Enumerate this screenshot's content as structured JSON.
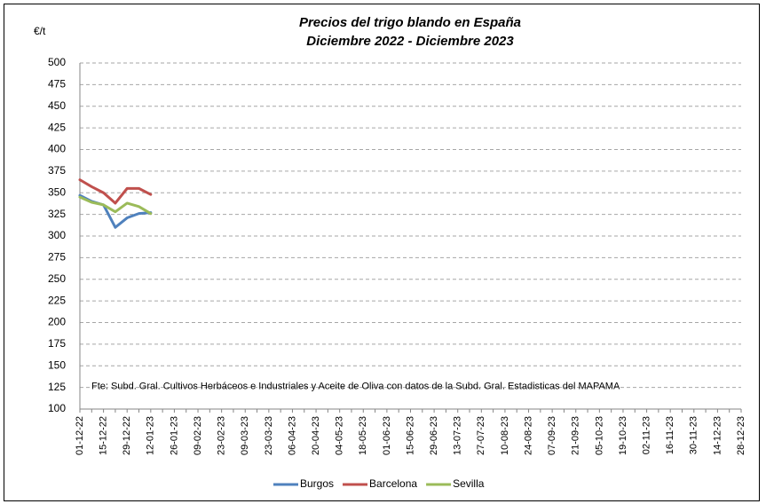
{
  "chart_data": {
    "type": "line",
    "title": "Precios del trigo blando en España",
    "subtitle": "Diciembre 2022 - Diciembre 2023",
    "y_label": "€/t",
    "annotation": "Fte: Subd. Gral. Cultivos Herbáceos e Industriales y Aceite de Oliva  con datos de la Subd. Gral. Estadisticas del MAPAMA",
    "categories": [
      "01-12-22",
      null,
      "15-12-22",
      null,
      "29-12-22",
      null,
      "12-01-23",
      null,
      "26-01-23",
      null,
      "09-02-23",
      null,
      "23-02-23",
      null,
      "09-03-23",
      null,
      "23-03-23",
      null,
      "06-04-23",
      null,
      "20-04-23",
      null,
      "04-05-23",
      null,
      "18-05-23",
      null,
      "01-06-23",
      null,
      "15-06-23",
      null,
      "29-06-23",
      null,
      "13-07-23",
      null,
      "27-07-23",
      null,
      "10-08-23",
      null,
      "24-08-23",
      null,
      "07-09-23",
      null,
      "21-09-23",
      null,
      "05-10-23",
      null,
      "19-10-23",
      null,
      "02-11-23",
      null,
      "16-11-23",
      null,
      "30-11-23",
      null,
      "14-12-23",
      null,
      "28-12-23"
    ],
    "series": [
      {
        "name": "Burgos",
        "color": "#4f81bd",
        "values": [
          347,
          340,
          336,
          310,
          321,
          326,
          327,
          null,
          null,
          null,
          null,
          null,
          null,
          null,
          null,
          null,
          null,
          null,
          null,
          null,
          null,
          null,
          null,
          null,
          null,
          null,
          null,
          null,
          null,
          null,
          null,
          null,
          null,
          null,
          null,
          null,
          null,
          null,
          null,
          null,
          null,
          null,
          null,
          null,
          null,
          null,
          null,
          null,
          null,
          null,
          null,
          null,
          null,
          null,
          null,
          null,
          null
        ]
      },
      {
        "name": "Barcelona",
        "color": "#c0504d",
        "values": [
          365,
          357,
          350,
          338,
          355,
          355,
          348,
          null,
          null,
          null,
          null,
          null,
          null,
          null,
          null,
          null,
          null,
          null,
          null,
          null,
          null,
          null,
          null,
          null,
          null,
          null,
          null,
          null,
          null,
          null,
          null,
          null,
          null,
          null,
          null,
          null,
          null,
          null,
          null,
          null,
          null,
          null,
          null,
          null,
          null,
          null,
          null,
          null,
          null,
          null,
          null,
          null,
          null,
          null,
          null,
          null,
          null
        ]
      },
      {
        "name": "Sevilla",
        "color": "#9bbb59",
        "values": [
          345,
          339,
          336,
          328,
          338,
          334,
          326,
          null,
          null,
          null,
          null,
          null,
          null,
          null,
          null,
          null,
          null,
          null,
          null,
          null,
          null,
          null,
          null,
          null,
          null,
          null,
          null,
          null,
          null,
          null,
          null,
          null,
          null,
          null,
          null,
          null,
          null,
          null,
          null,
          null,
          null,
          null,
          null,
          null,
          null,
          null,
          null,
          null,
          null,
          null,
          null,
          null,
          null,
          null,
          null,
          null,
          null
        ]
      }
    ],
    "ylim": [
      100,
      500
    ],
    "yticks": [
      100,
      125,
      150,
      175,
      200,
      225,
      250,
      275,
      300,
      325,
      350,
      375,
      400,
      425,
      450,
      475,
      500
    ],
    "grid": true,
    "legend": "bottom"
  }
}
